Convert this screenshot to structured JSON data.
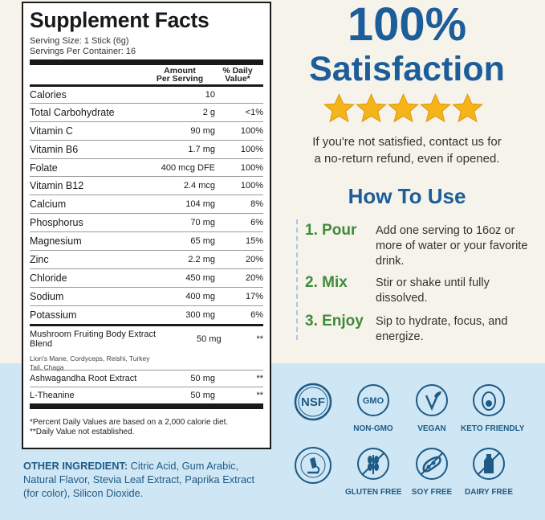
{
  "facts": {
    "title": "Supplement Facts",
    "serving_size": "Serving Size: 1 Stick (6g)",
    "servings_per_container": "Servings Per Container: 16",
    "col_amount_line1": "Amount",
    "col_amount_line2": "Per Serving",
    "col_dv_line1": "% Daily",
    "col_dv_line2": "Value*",
    "rows": [
      {
        "name": "Calories",
        "amount": "10",
        "dv": ""
      },
      {
        "name": "Total Carbohydrate",
        "amount": "2 g",
        "dv": "<1%"
      },
      {
        "name": "Vitamin C",
        "amount": "90 mg",
        "dv": "100%"
      },
      {
        "name": "Vitamin B6",
        "amount": "1.7 mg",
        "dv": "100%"
      },
      {
        "name": "Folate",
        "amount": "400 mcg DFE",
        "dv": "100%"
      },
      {
        "name": "Vitamin B12",
        "amount": "2.4 mcg",
        "dv": "100%"
      },
      {
        "name": "Calcium",
        "amount": "104 mg",
        "dv": "8%"
      },
      {
        "name": "Phosphorus",
        "amount": "70 mg",
        "dv": "6%"
      },
      {
        "name": "Magnesium",
        "amount": "65 mg",
        "dv": "15%"
      },
      {
        "name": "Zinc",
        "amount": "2.2 mg",
        "dv": "20%"
      },
      {
        "name": "Chloride",
        "amount": "450 mg",
        "dv": "20%"
      },
      {
        "name": "Sodium",
        "amount": "400 mg",
        "dv": "17%"
      },
      {
        "name": "Potassium",
        "amount": "300 mg",
        "dv": "6%"
      }
    ],
    "blend": {
      "name": "Mushroom Fruiting Body Extract Blend",
      "amount": "50 mg",
      "dv": "**",
      "sub": "Lion's Mane, Cordyceps, Reishi, Turkey Tail, Chaga"
    },
    "extra_rows": [
      {
        "name": "Ashwagandha Root Extract",
        "amount": "50 mg",
        "dv": "**"
      },
      {
        "name": "L-Theanine",
        "amount": "50 mg",
        "dv": "**"
      }
    ],
    "footnote1": "*Percent Daily Values are based on a 2,000 calorie diet.",
    "footnote2": "**Daily Value not established."
  },
  "other_ingredient": {
    "label": "OTHER INGREDIENT:",
    "text": " Citric Acid, Gum Arabic, Natural Flavor, Stevia Leaf Extract, Paprika Extract (for color), Silicon Dioxide."
  },
  "satisfaction": {
    "percent": "100%",
    "word": "Satisfaction",
    "rating": 5,
    "guarantee_line1": "If you're not satisfied, contact us for",
    "guarantee_line2": "a no-return refund, even if opened."
  },
  "how_to_use": {
    "title": "How To Use",
    "steps": [
      {
        "label": "1. Pour",
        "text": "Add one serving to 16oz or more of water or your favorite drink."
      },
      {
        "label": "2. Mix",
        "text": "Stir or shake until fully dissolved."
      },
      {
        "label": "3. Enjoy",
        "text": "Sip to hydrate, focus, and energize."
      }
    ]
  },
  "badges": {
    "nsf": "NSF",
    "non_gmo_inner": "GMO",
    "non_gmo": "NON-GMO",
    "vegan": "VEGAN",
    "keto": "KETO FRIENDLY",
    "third_party": "THIRD PARTY TESTED",
    "gluten_free": "GLUTEN FREE",
    "soy_free": "SOY FREE",
    "dairy_free": "DAIRY FREE"
  },
  "colors": {
    "brand_blue": "#1c5d9a",
    "step_green": "#3f8a3c",
    "badge_blue": "#1d5b86",
    "band_blue": "#cfe6f5",
    "star_gold": "#f4b41a"
  }
}
